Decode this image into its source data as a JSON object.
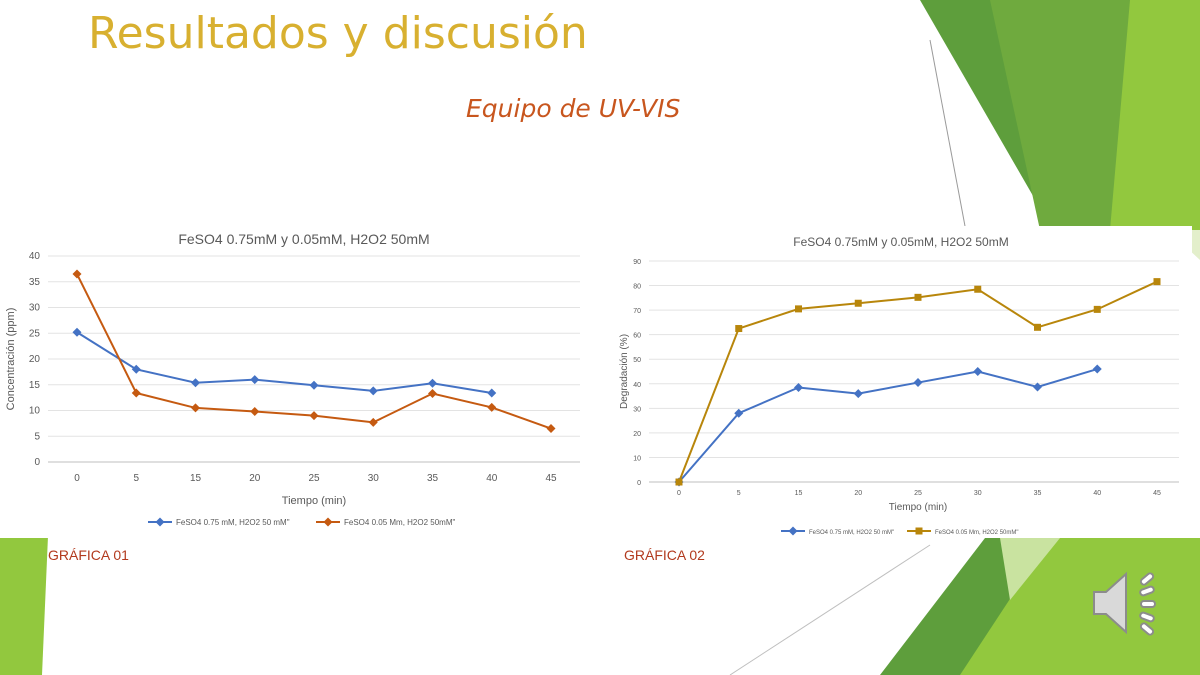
{
  "slide": {
    "title": "Resultados y discusión",
    "subtitle": "Equipo de UV-VIS",
    "caption1": "GRÁFICA 01",
    "caption2": "GRÁFICA 02",
    "audio_icon": "speaker-icon"
  },
  "colors": {
    "title": "#D8B030",
    "subtitle": "#C8561E",
    "caption": "#B23A1E",
    "series_blue": "#4472C4",
    "series_orange": "#C55A11",
    "series_gold": "#B8860B",
    "green_dark": "#5E9E3C",
    "green_light": "#92C83E"
  },
  "chart_data": [
    {
      "type": "line",
      "title": "FeSO4 0.75mM y 0.05mM, H2O2 50mM",
      "xlabel": "Tiempo (min)",
      "ylabel": "Concentración (ppm)",
      "categories": [
        "0",
        "5",
        "15",
        "20",
        "25",
        "30",
        "35",
        "40",
        "45"
      ],
      "ylim": [
        0,
        40
      ],
      "yticks": [
        0,
        5,
        10,
        15,
        20,
        25,
        30,
        35,
        40
      ],
      "grid": true,
      "legend": "bottom",
      "series": [
        {
          "name": "FeSO4 0.75 mM, H2O2 50 mM\"",
          "color": "#4472C4",
          "marker": "diamond",
          "values": [
            25.2,
            18.0,
            15.4,
            16.0,
            14.9,
            13.8,
            15.3,
            13.4,
            null
          ]
        },
        {
          "name": "FeSO4 0.05 Mm, H2O2 50mM\"",
          "color": "#C55A11",
          "marker": "diamond",
          "values": [
            36.5,
            13.4,
            10.5,
            9.8,
            9.0,
            7.7,
            13.3,
            10.6,
            6.5
          ]
        }
      ]
    },
    {
      "type": "line",
      "title": "FeSO4 0.75mM y 0.05mM, H2O2 50mM",
      "xlabel": "Tiempo (min)",
      "ylabel": "Degradación (%)",
      "categories": [
        "0",
        "5",
        "15",
        "20",
        "25",
        "30",
        "35",
        "40",
        "45"
      ],
      "ylim": [
        0,
        90
      ],
      "yticks": [
        0,
        10,
        20,
        30,
        40,
        50,
        60,
        70,
        80,
        90
      ],
      "grid": true,
      "legend": "bottom",
      "series": [
        {
          "name": "FeSO4 0.75 mM, H2O2 50 mM\"",
          "color": "#4472C4",
          "marker": "diamond",
          "values": [
            0,
            28,
            38.5,
            36,
            40.5,
            45,
            38.7,
            46,
            null
          ]
        },
        {
          "name": "FeSO4 0.05 Mm, H2O2 50mM\"",
          "color": "#B8860B",
          "marker": "square",
          "values": [
            0,
            62.5,
            70.5,
            72.8,
            75.2,
            78.5,
            63,
            70.3,
            81.6
          ]
        }
      ]
    }
  ]
}
